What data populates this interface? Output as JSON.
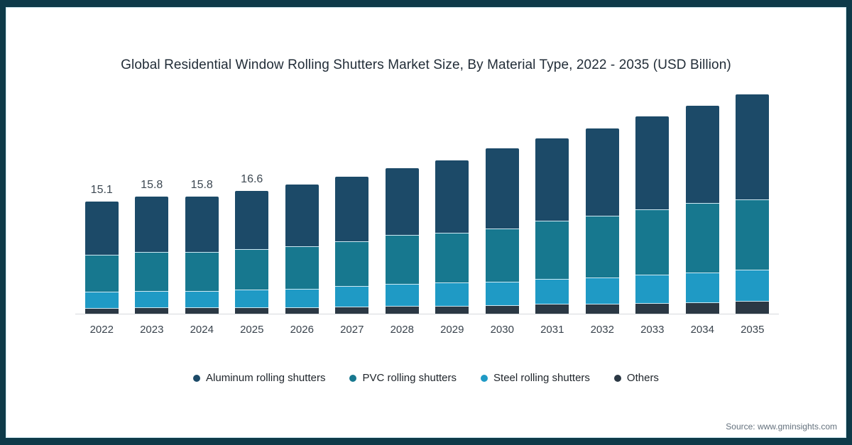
{
  "page": {
    "frame_color": "#0e3a49",
    "background": "#ffffff"
  },
  "chart_data": {
    "type": "bar",
    "stacked": true,
    "title": "Global Residential Window Rolling Shutters Market Size, By Material Type, 2022 - 2035 (USD Billion)",
    "units": "USD Billion",
    "categories": [
      "2022",
      "2023",
      "2024",
      "2025",
      "2026",
      "2027",
      "2028",
      "2029",
      "2030",
      "2031",
      "2032",
      "2033",
      "2034",
      "2035"
    ],
    "series": [
      {
        "name": "Aluminum rolling shutters",
        "color": "#1c4a68",
        "values": [
          7.2,
          7.5,
          7.5,
          7.9,
          8.3,
          8.7,
          9.0,
          9.8,
          10.8,
          11.1,
          11.8,
          12.5,
          13.1,
          14.2
        ]
      },
      {
        "name": "PVC rolling shutters",
        "color": "#17788f",
        "values": [
          4.9,
          5.2,
          5.2,
          5.4,
          5.7,
          6.1,
          6.6,
          6.7,
          7.2,
          7.8,
          8.3,
          8.8,
          9.3,
          9.5
        ]
      },
      {
        "name": "Steel rolling shutters",
        "color": "#1f9ac5",
        "values": [
          2.2,
          2.2,
          2.2,
          2.4,
          2.5,
          2.7,
          2.9,
          3.1,
          3.1,
          3.4,
          3.6,
          3.9,
          4.1,
          4.2
        ]
      },
      {
        "name": "Others",
        "color": "#2b3844",
        "values": [
          0.8,
          0.9,
          0.9,
          0.9,
          0.9,
          1.0,
          1.1,
          1.1,
          1.2,
          1.3,
          1.3,
          1.4,
          1.5,
          1.7
        ]
      }
    ],
    "totals": [
      15.1,
      15.8,
      15.8,
      16.6,
      17.4,
      18.5,
      19.6,
      20.7,
      22.3,
      23.6,
      25.0,
      26.6,
      28.0,
      29.6
    ],
    "value_labels": [
      "15.1",
      "15.8",
      "15.8",
      "16.6",
      "",
      "",
      "",
      "",
      "",
      "",
      "",
      "",
      "",
      ""
    ],
    "legend_position": "bottom",
    "grid": false,
    "y_axis_visible": false,
    "ylim": [
      0,
      32
    ],
    "separator_color": "#cfe9f3",
    "axis_color": "#d7dadd",
    "source_note": "Source: www.gminsights.com"
  }
}
